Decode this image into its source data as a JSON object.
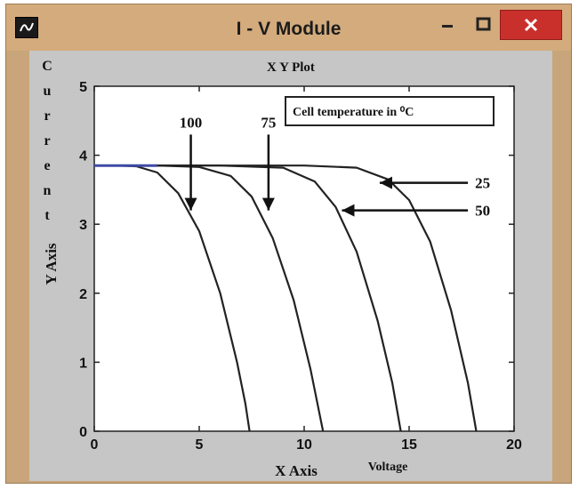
{
  "window": {
    "title": "I - V Module",
    "icons": {
      "app": "scope-icon",
      "minimize": "minimize-icon",
      "maximize": "maximize-icon",
      "close": "close-icon"
    }
  },
  "colors": {
    "titlebar": "#d4ab7c",
    "close_button": "#c9302c",
    "plot_area": "#ffffff",
    "curve": "#222222",
    "baseline": "#3f4aa6"
  },
  "chart_data": {
    "type": "line",
    "title": "X Y Plot",
    "xlabel": "X Axis",
    "ylabel": "Y Axis",
    "xlabel_extra": "Voltage",
    "ylabel_extra": [
      "C",
      "u",
      "r",
      "r",
      "e",
      "n",
      "t"
    ],
    "xlim": [
      0,
      20
    ],
    "ylim": [
      0,
      5
    ],
    "xticks": [
      "0",
      "5",
      "10",
      "15",
      "20"
    ],
    "yticks": [
      "0",
      "1",
      "2",
      "3",
      "4",
      "5"
    ],
    "grid": false,
    "legend_box": "Cell temperature in ⁰C",
    "series": [
      {
        "name": "100",
        "points": [
          [
            0,
            3.85
          ],
          [
            1,
            3.85
          ],
          [
            2,
            3.84
          ],
          [
            3,
            3.75
          ],
          [
            4,
            3.45
          ],
          [
            5,
            2.9
          ],
          [
            6,
            2.0
          ],
          [
            6.8,
            1.0
          ],
          [
            7.2,
            0.4
          ],
          [
            7.4,
            0
          ]
        ]
      },
      {
        "name": "75",
        "points": [
          [
            0,
            3.85
          ],
          [
            3,
            3.85
          ],
          [
            5,
            3.83
          ],
          [
            6.5,
            3.7
          ],
          [
            7.5,
            3.4
          ],
          [
            8.5,
            2.8
          ],
          [
            9.5,
            1.9
          ],
          [
            10.3,
            0.9
          ],
          [
            10.7,
            0.3
          ],
          [
            10.9,
            0
          ]
        ]
      },
      {
        "name": "50",
        "points": [
          [
            0,
            3.85
          ],
          [
            6,
            3.85
          ],
          [
            9,
            3.82
          ],
          [
            10.5,
            3.62
          ],
          [
            11.5,
            3.25
          ],
          [
            12.5,
            2.6
          ],
          [
            13.5,
            1.6
          ],
          [
            14.2,
            0.7
          ],
          [
            14.6,
            0
          ]
        ]
      },
      {
        "name": "25",
        "points": [
          [
            0,
            3.85
          ],
          [
            10,
            3.85
          ],
          [
            12.5,
            3.82
          ],
          [
            14,
            3.65
          ],
          [
            15,
            3.35
          ],
          [
            16,
            2.75
          ],
          [
            17,
            1.75
          ],
          [
            17.8,
            0.7
          ],
          [
            18.2,
            0
          ]
        ]
      }
    ],
    "annotations": [
      {
        "label": "100",
        "from": [
          4.6,
          4.3
        ],
        "to": [
          4.6,
          3.2
        ]
      },
      {
        "label": "75",
        "from": [
          8.3,
          4.3
        ],
        "to": [
          8.3,
          3.2
        ]
      },
      {
        "label": "25",
        "from": [
          17.8,
          3.6
        ],
        "to": [
          13.6,
          3.6
        ]
      },
      {
        "label": "50",
        "from": [
          17.8,
          3.2
        ],
        "to": [
          11.8,
          3.2
        ]
      }
    ]
  }
}
